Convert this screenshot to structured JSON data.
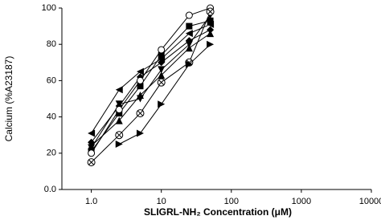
{
  "chart_data": {
    "type": "line",
    "xlabel": "SLIGRL-NH₂ Concentration (μM)",
    "ylabel": "Calcium (%A23187)",
    "xscale": "log",
    "x": [
      1,
      2.5,
      5,
      10,
      25,
      50
    ],
    "xlim": [
      0.38,
      10000
    ],
    "xticks": [
      {
        "value": 1,
        "label": "1.0"
      },
      10,
      100,
      1000,
      10000
    ],
    "ylim": [
      0,
      100
    ],
    "yticks": [
      {
        "value": 0,
        "label": "0.0"
      },
      20,
      40,
      60,
      80,
      100
    ],
    "series": [
      {
        "marker": "triangle-left",
        "color": "#000000",
        "values": [
          31,
          55,
          65,
          72,
          86,
          91
        ]
      },
      {
        "marker": "diamond",
        "color": "#000000",
        "values": [
          26,
          46,
          62,
          70,
          82,
          88
        ]
      },
      {
        "marker": "square",
        "color": "#000000",
        "values": [
          21,
          42,
          57,
          74,
          90,
          93
        ]
      },
      {
        "marker": "triangle-down",
        "color": "#000000",
        "values": [
          23,
          47,
          50,
          66,
          80,
          96
        ]
      },
      {
        "marker": "triangle-up",
        "color": "#000000",
        "values": [
          24,
          38,
          52,
          63,
          78,
          86
        ]
      },
      {
        "marker": "circle-open",
        "color": "#000000",
        "values": [
          20,
          44,
          60,
          77,
          96,
          100
        ]
      },
      {
        "marker": "circle-x",
        "color": "#000000",
        "values": [
          15,
          30,
          42,
          59,
          70,
          98
        ]
      },
      {
        "marker": "triangle-right",
        "color": "#000000",
        "values": [
          null,
          25,
          31,
          47,
          69,
          80
        ]
      }
    ]
  }
}
